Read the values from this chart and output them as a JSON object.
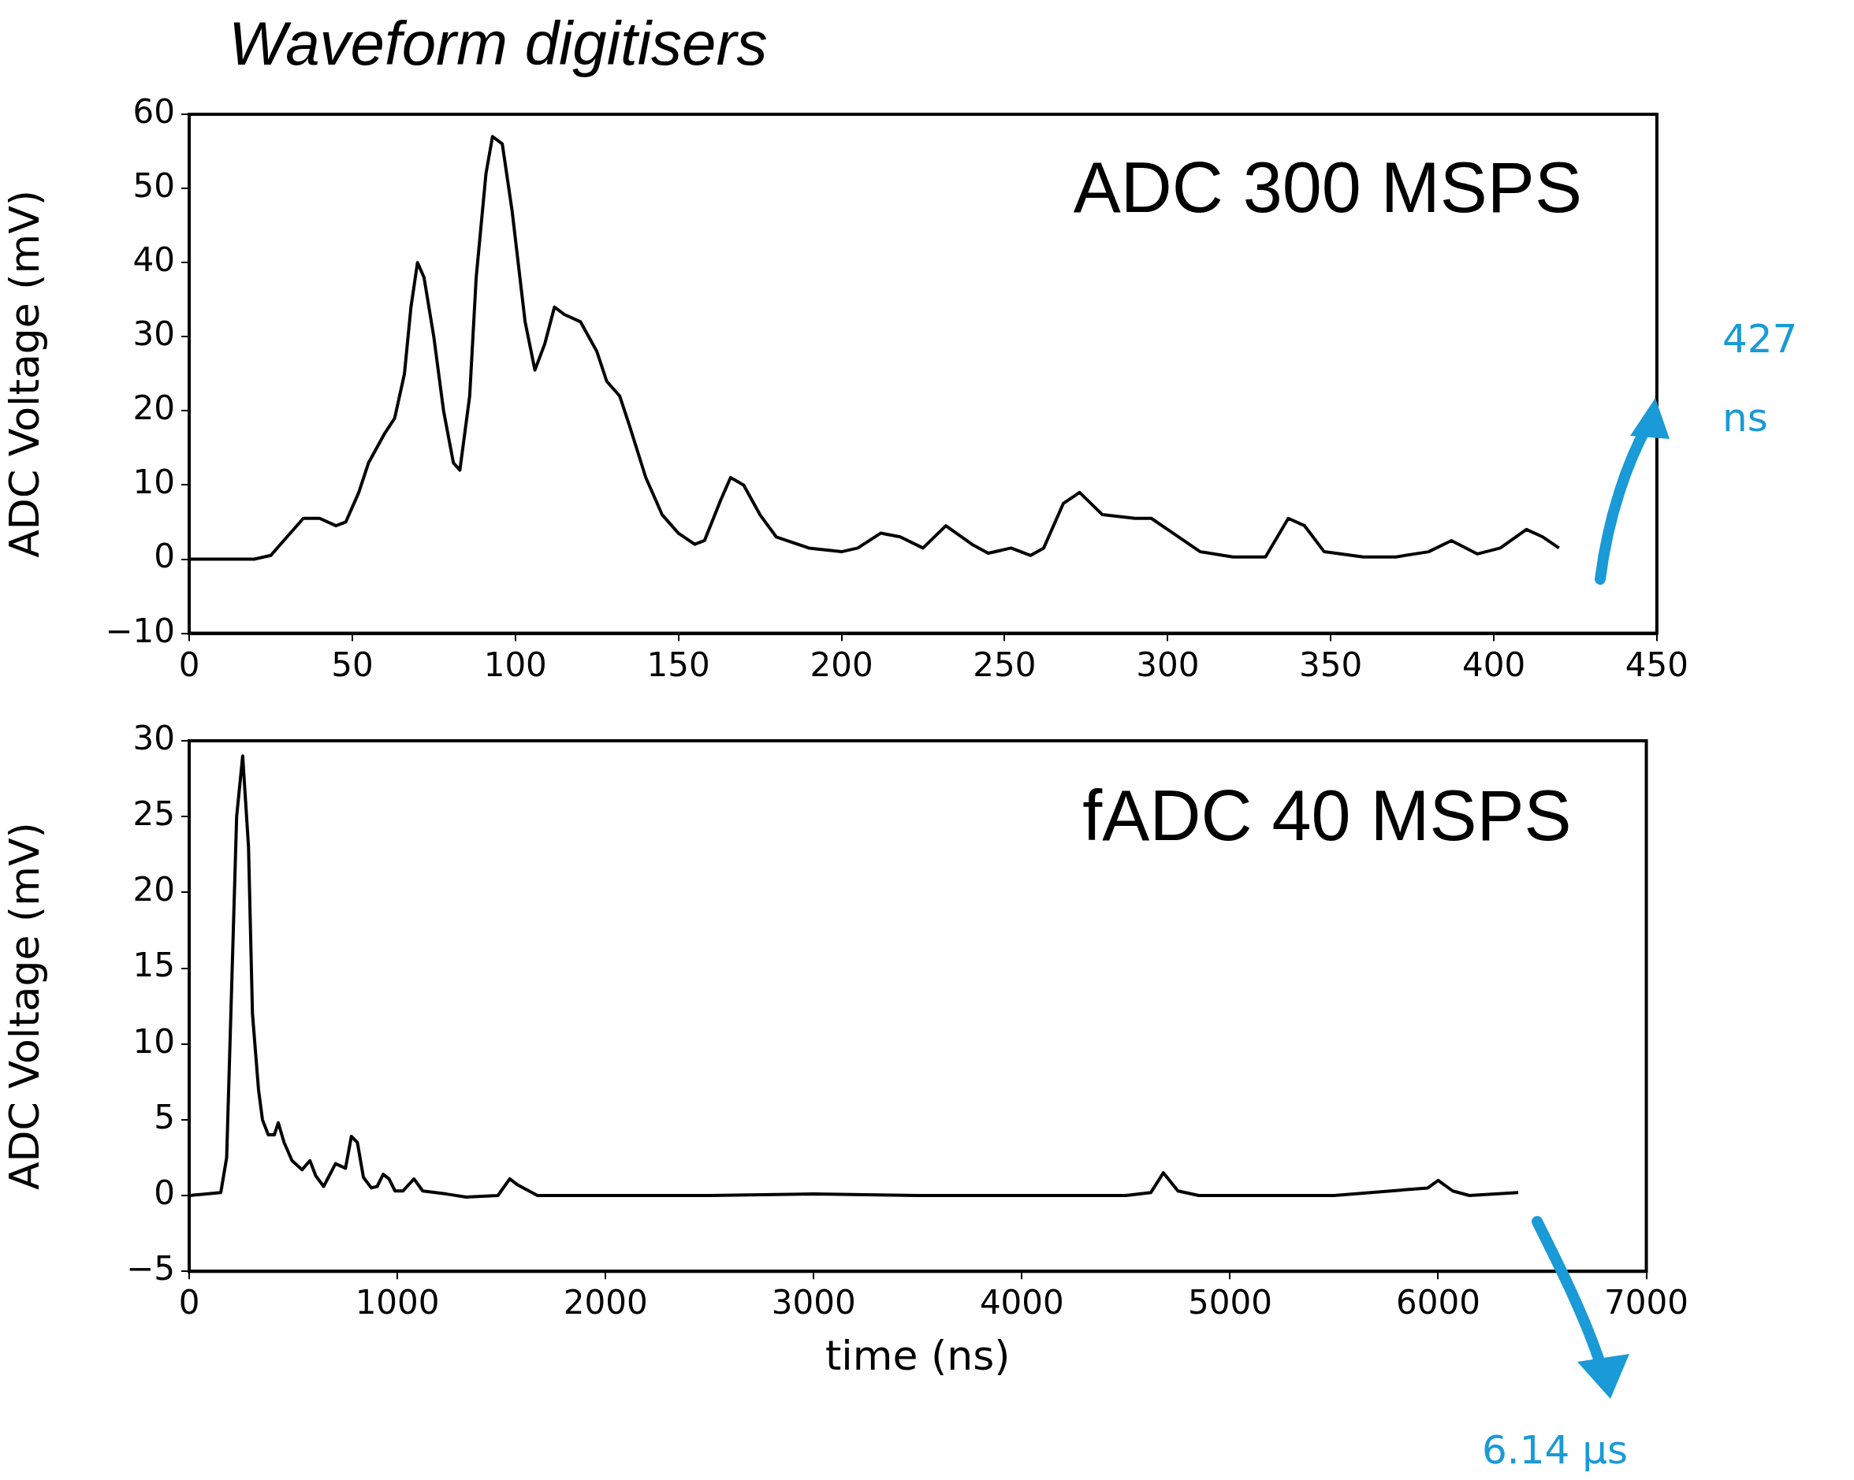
{
  "chart_data": [
    {
      "type": "line",
      "title": "Waveform digitisers",
      "ylabel": "ADC Voltage (mV)",
      "annotations": [
        "ADC 300 MSPS",
        "427 ns"
      ],
      "xlim": [
        0,
        450
      ],
      "xticks": [
        0,
        50,
        100,
        150,
        200,
        250,
        300,
        350,
        400,
        450
      ],
      "ylim": [
        -10,
        60
      ],
      "yticks": [
        {
          "value": -10,
          "label": "−10"
        },
        0,
        10,
        20,
        30,
        40,
        50,
        60
      ],
      "grid": false,
      "legend": false,
      "marker": "none",
      "line_style": "solid",
      "series": [
        {
          "color": "#000000",
          "x": [
            0,
            20,
            25,
            30,
            35,
            40,
            45,
            48,
            52,
            55,
            60,
            63,
            66,
            68,
            70,
            72,
            75,
            78,
            81,
            83,
            86,
            88,
            91,
            93,
            96,
            99,
            103,
            106,
            109,
            112,
            115,
            120,
            125,
            128,
            132,
            135,
            140,
            145,
            150,
            155,
            158,
            163,
            166,
            170,
            175,
            180,
            190,
            200,
            205,
            212,
            218,
            225,
            232,
            240,
            245,
            252,
            258,
            262,
            268,
            273,
            280,
            290,
            295,
            300,
            310,
            320,
            330,
            337,
            342,
            348,
            360,
            370,
            380,
            387,
            395,
            402,
            410,
            415,
            420
          ],
          "values": [
            0,
            0,
            0.5,
            3,
            5.5,
            5.5,
            4.5,
            5,
            9,
            13,
            17,
            19,
            25,
            34,
            40,
            38,
            30,
            20,
            13,
            12,
            22,
            38,
            52,
            57,
            56,
            47,
            32,
            25.5,
            29,
            34,
            33,
            32,
            28,
            24,
            22,
            18,
            11,
            6,
            3.5,
            2,
            2.5,
            8,
            11,
            10,
            6,
            3,
            1.5,
            1,
            1.5,
            3.5,
            3,
            1.5,
            4.5,
            2,
            0.8,
            1.5,
            0.5,
            1.5,
            7.5,
            9,
            6,
            5.5,
            5.5,
            4,
            1,
            0.3,
            0.3,
            5.5,
            4.5,
            1,
            0.3,
            0.3,
            1,
            2.5,
            0.7,
            1.5,
            4,
            3,
            1.5
          ]
        }
      ]
    },
    {
      "type": "line",
      "xlabel": "time (ns)",
      "ylabel": "ADC Voltage (mV)",
      "annotations": [
        "fADC 40 MSPS",
        "6.14 µs"
      ],
      "xlim": [
        0,
        7000
      ],
      "xticks": [
        0,
        1000,
        2000,
        3000,
        4000,
        5000,
        6000,
        7000
      ],
      "ylim": [
        -5,
        30
      ],
      "yticks": [
        {
          "value": -5,
          "label": "−5"
        },
        0,
        5,
        10,
        15,
        20,
        25,
        30
      ],
      "grid": false,
      "legend": false,
      "marker": "none",
      "line_style": "solid",
      "series": [
        {
          "color": "#000000",
          "x": [
            0,
            152,
            180,
            228,
            257,
            285,
            304,
            333,
            352,
            380,
            409,
            428,
            456,
            494,
            542,
            580,
            608,
            646,
            703,
            751,
            779,
            808,
            837,
            875,
            903,
            932,
            960,
            989,
            1027,
            1080,
            1122,
            1236,
            1331,
            1483,
            1540,
            1578,
            1673,
            1800,
            2000,
            2500,
            3000,
            3500,
            4000,
            4500,
            4620,
            4680,
            4750,
            4850,
            5500,
            5950,
            6000,
            6070,
            6150,
            6385
          ],
          "values": [
            0,
            0.2,
            2.5,
            25,
            29,
            23,
            12,
            7,
            5,
            4,
            4,
            4.8,
            3.5,
            2.3,
            1.7,
            2.3,
            1.3,
            0.6,
            2.1,
            1.8,
            3.9,
            3.5,
            1.2,
            0.5,
            0.6,
            1.4,
            1.1,
            0.3,
            0.3,
            1.1,
            0.3,
            0.1,
            -0.1,
            0,
            1.1,
            0.7,
            0,
            0,
            0,
            0,
            0.1,
            0,
            0,
            0,
            0.2,
            1.5,
            0.3,
            0,
            0,
            0.5,
            1,
            0.3,
            0,
            0.2
          ]
        }
      ]
    }
  ]
}
